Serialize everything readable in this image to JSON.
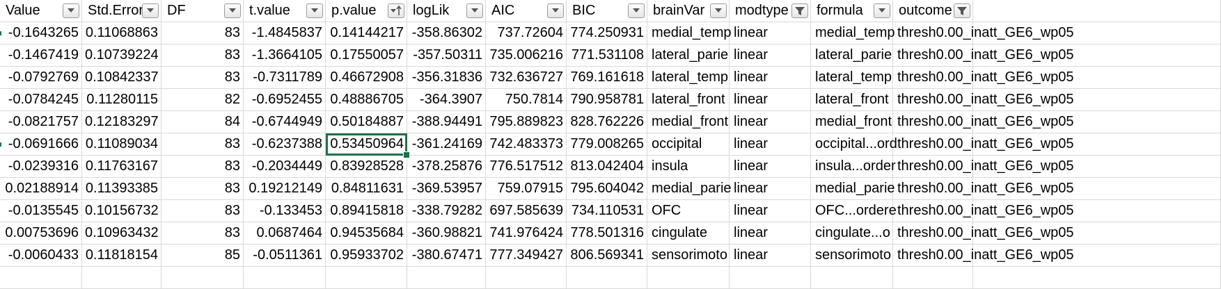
{
  "columns": [
    {
      "key": "value",
      "label": "Value",
      "align": "num",
      "filter": "dropdown"
    },
    {
      "key": "se",
      "label": "Std.Error",
      "align": "num",
      "filter": "dropdown"
    },
    {
      "key": "df",
      "label": "DF",
      "align": "num",
      "filter": "dropdown"
    },
    {
      "key": "tvalue",
      "label": "t.value",
      "align": "num",
      "filter": "dropdown"
    },
    {
      "key": "pvalue",
      "label": "p.value",
      "align": "num",
      "filter": "sorted-ascending"
    },
    {
      "key": "loglik",
      "label": "logLik",
      "align": "num",
      "filter": "dropdown"
    },
    {
      "key": "aic",
      "label": "AIC",
      "align": "num",
      "filter": "dropdown"
    },
    {
      "key": "bic",
      "label": "BIC",
      "align": "num",
      "filter": "dropdown"
    },
    {
      "key": "brainvar",
      "label": "brainVar",
      "align": "txt",
      "filter": "dropdown"
    },
    {
      "key": "modtype",
      "label": "modtype",
      "align": "txt",
      "filter": "filtered"
    },
    {
      "key": "formula",
      "label": "formula",
      "align": "txt",
      "filter": "dropdown"
    },
    {
      "key": "outcome",
      "label": "outcome",
      "align": "txt",
      "filter": "filtered"
    }
  ],
  "rows": [
    [
      "-0.1643265",
      "0.11068863",
      "83",
      "-1.4845837",
      "0.14144217",
      "-358.86302",
      "737.72604",
      "774.250931",
      "medial_temp",
      "linear",
      "medial_temp",
      "thresh0.00_inatt_GE6_wp05"
    ],
    [
      "-0.1467419",
      "0.10739224",
      "83",
      "-1.3664105",
      "0.17550057",
      "-357.50311",
      "735.006216",
      "771.531108",
      "lateral_parie",
      "linear",
      "lateral_parie",
      "thresh0.00_inatt_GE6_wp05"
    ],
    [
      "-0.0792769",
      "0.10842337",
      "83",
      "-0.7311789",
      "0.46672908",
      "-356.31836",
      "732.636727",
      "769.161618",
      "lateral_temp",
      "linear",
      "lateral_temp",
      "thresh0.00_inatt_GE6_wp05"
    ],
    [
      "-0.0784245",
      "0.11280115",
      "82",
      "-0.6952455",
      "0.48886705",
      "-364.3907",
      "750.7814",
      "790.958781",
      "lateral_front",
      "linear",
      "lateral_front",
      "thresh0.00_inatt_GE6_wp05"
    ],
    [
      "-0.0821757",
      "0.12183297",
      "84",
      "-0.6744949",
      "0.50184887",
      "-388.94491",
      "795.889823",
      "828.762226",
      "medial_front",
      "linear",
      "medial_front",
      "thresh0.00_inatt_GE6_wp05"
    ],
    [
      "-0.0691666",
      "0.11089034",
      "83",
      "-0.6237388",
      "0.53450964",
      "-361.24169",
      "742.483373",
      "779.008265",
      "occipital",
      "linear",
      "occipital...ord",
      "thresh0.00_inatt_GE6_wp05"
    ],
    [
      "-0.0239316",
      "0.11763167",
      "83",
      "-0.2034449",
      "0.83928528",
      "-378.25876",
      "776.517512",
      "813.042404",
      "insula",
      "linear",
      "insula...order",
      "thresh0.00_inatt_GE6_wp05"
    ],
    [
      "0.02188914",
      "0.11393385",
      "83",
      "0.19212149",
      "0.84811631",
      "-369.53957",
      "759.07915",
      "795.604042",
      "medial_parie",
      "linear",
      "medial_parie",
      "thresh0.00_inatt_GE6_wp05"
    ],
    [
      "-0.0135545",
      "0.10156732",
      "83",
      "-0.133453",
      "0.89415818",
      "-338.79282",
      "697.585639",
      "734.110531",
      "OFC",
      "linear",
      "OFC...ordere",
      "thresh0.00_inatt_GE6_wp05"
    ],
    [
      "0.00753696",
      "0.10963432",
      "83",
      "0.0687464",
      "0.94535684",
      "-360.98821",
      "741.976424",
      "778.501316",
      "cingulate",
      "linear",
      "cingulate...o",
      "thresh0.00_inatt_GE6_wp05"
    ],
    [
      "-0.0060433",
      "0.11818154",
      "85",
      "-0.0511361",
      "0.95933702",
      "-380.67471",
      "777.349427",
      "806.569341",
      "sensorimoto",
      "linear",
      "sensorimoto",
      "thresh0.00_inatt_GE6_wp05"
    ]
  ],
  "selected_cell": {
    "row": 5,
    "col": 4
  },
  "colors": {
    "selection": "#1f7145",
    "gridline": "#d9d9d9"
  }
}
